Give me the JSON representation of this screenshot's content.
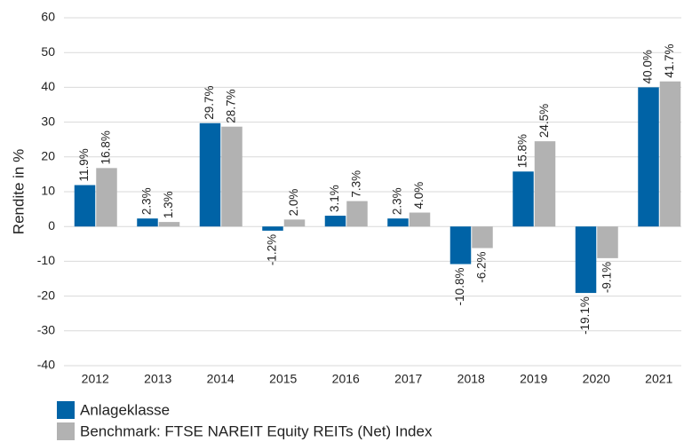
{
  "chart_data": {
    "type": "bar",
    "y_label": "Rendite in %",
    "categories": [
      "2012",
      "2013",
      "2014",
      "2015",
      "2016",
      "2017",
      "2018",
      "2019",
      "2020",
      "2021"
    ],
    "series": [
      {
        "name": "Anlageklasse",
        "color": "#0063a6",
        "values": [
          11.9,
          2.3,
          29.7,
          -1.2,
          3.1,
          2.3,
          -10.8,
          15.8,
          -19.1,
          40.0
        ],
        "value_labels": [
          "11.9%",
          "2.3%",
          "29.7%",
          "-1.2%",
          "3.1%",
          "2.3%",
          "-10.8%",
          "15.8%",
          "-19.1%",
          "40.0%"
        ]
      },
      {
        "name": "Benchmark: FTSE NAREIT Equity REITs (Net) Index",
        "color": "#b2b2b2",
        "values": [
          16.8,
          1.3,
          28.7,
          2.0,
          7.3,
          4.0,
          -6.2,
          24.5,
          -9.1,
          41.7
        ],
        "value_labels": [
          "16.8%",
          "1.3%",
          "28.7%",
          "2.0%",
          "7.3%",
          "4.0%",
          "-6.2%",
          "24.5%",
          "-9.1%",
          "41.7%"
        ]
      }
    ],
    "ylim": [
      -40,
      60
    ],
    "yticks": [
      -40,
      -30,
      -20,
      -10,
      0,
      10,
      20,
      30,
      40,
      50,
      60
    ],
    "grid": true
  }
}
